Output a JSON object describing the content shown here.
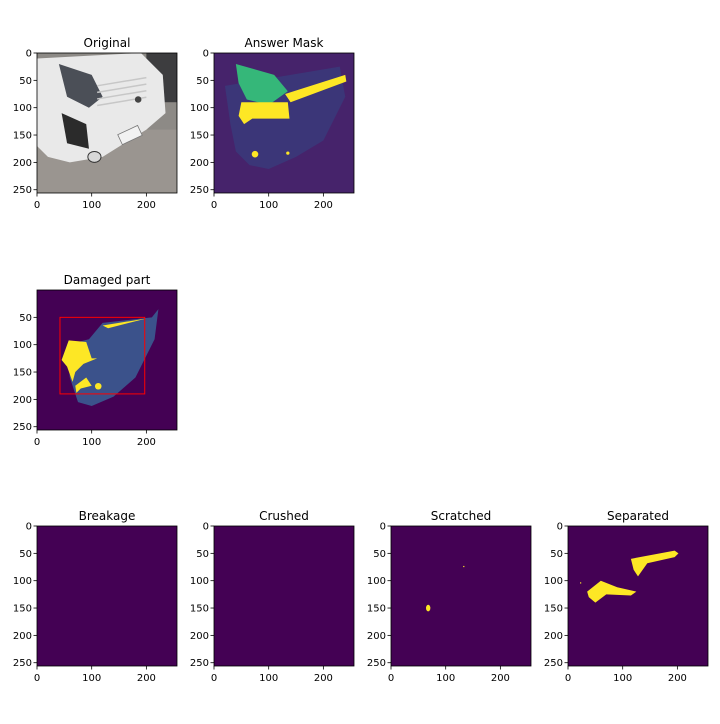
{
  "panels": [
    {
      "id": "original",
      "title": "Original",
      "kind": "photo",
      "xticks": [
        "0",
        "100",
        "200"
      ],
      "yticks": [
        "0",
        "50",
        "100",
        "150",
        "200",
        "250"
      ]
    },
    {
      "id": "answer-mask",
      "title": "Answer Mask",
      "kind": "mask-overlay",
      "xticks": [
        "0",
        "100",
        "200"
      ],
      "yticks": [
        "0",
        "50",
        "100",
        "150",
        "200",
        "250"
      ]
    },
    {
      "id": "damaged-part",
      "title": "Damaged part",
      "kind": "damaged-part",
      "xticks": [
        "0",
        "100",
        "200"
      ],
      "yticks": [
        "50",
        "100",
        "150",
        "200",
        "250"
      ]
    },
    {
      "id": "breakage",
      "title": "Breakage",
      "kind": "empty",
      "xticks": [
        "0",
        "100",
        "200"
      ],
      "yticks": [
        "0",
        "50",
        "100",
        "150",
        "200",
        "250"
      ]
    },
    {
      "id": "crushed",
      "title": "Crushed",
      "kind": "empty",
      "xticks": [
        "0",
        "100",
        "200"
      ],
      "yticks": [
        "0",
        "50",
        "100",
        "150",
        "200",
        "250"
      ]
    },
    {
      "id": "scratched",
      "title": "Scratched",
      "kind": "scratched",
      "xticks": [
        "0",
        "100",
        "200"
      ],
      "yticks": [
        "0",
        "50",
        "100",
        "150",
        "200",
        "250"
      ]
    },
    {
      "id": "separated",
      "title": "Separated",
      "kind": "separated",
      "xticks": [
        "0",
        "100",
        "200"
      ],
      "yticks": [
        "0",
        "50",
        "100",
        "150",
        "200",
        "250"
      ]
    }
  ],
  "colors": {
    "background": "#440154",
    "mask_yellow": "#fde725",
    "part_blue": "#3b528b",
    "headlight_teal": "#35b779",
    "bbox_red": "#ff0000"
  }
}
